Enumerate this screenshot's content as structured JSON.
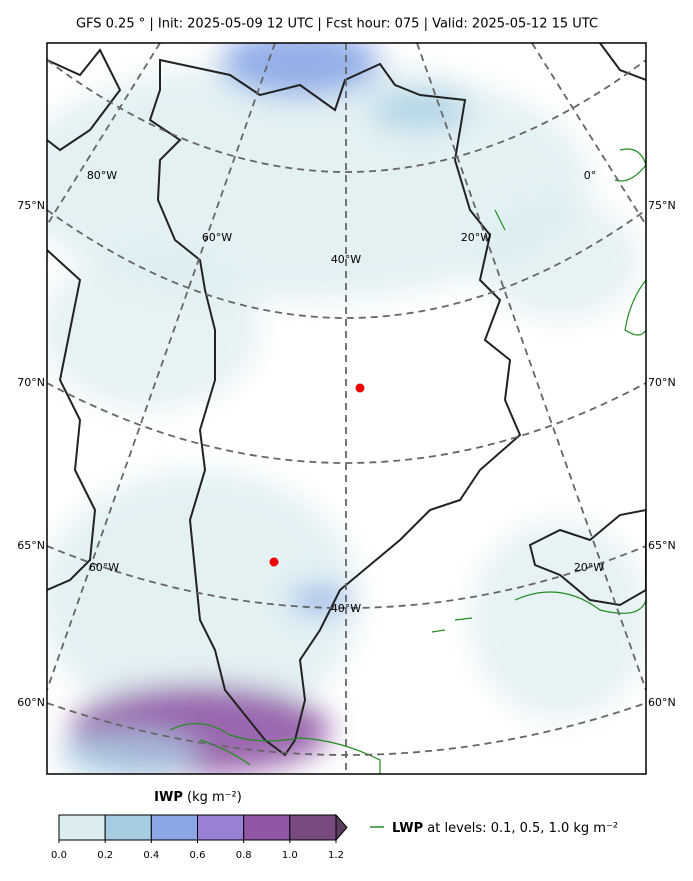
{
  "header": {
    "title": "GFS 0.25 °  |  Init: 2025-05-09 12 UTC  |  Fcst hour: 075  |  Valid: 2025-05-12 15 UTC"
  },
  "map": {
    "lat_labels_left": [
      "75°N",
      "70°N",
      "65°N",
      "60°N"
    ],
    "lat_labels_right": [
      "75°N",
      "70°N",
      "65°N",
      "60°N"
    ],
    "lon_labels": [
      "80°W",
      "60°W",
      "40°W",
      "20°W",
      "0°",
      "60°W",
      "40°W",
      "20°W"
    ]
  },
  "colorbar": {
    "label_bold": "IWP",
    "label_unit": "(kg m⁻²)",
    "limits": [
      0,
      1.2
    ],
    "ticks": [
      {
        "value": 0,
        "label": "0.0"
      },
      0.2,
      0.4,
      0.6,
      0.8,
      {
        "value": 1,
        "label": "1.0"
      },
      1.2
    ],
    "colors": [
      "#dcedf0",
      "#a7cde3",
      "#8ba7e7",
      "#9a80d6",
      "#9157a6",
      "#794a80"
    ],
    "extend_color": "#5c3b5c"
  },
  "legend": {
    "label_bold": "LWP",
    "label_text": "at levels: 0.1, 0.5, 1.0  kg m⁻²",
    "color": "#228b22"
  }
}
